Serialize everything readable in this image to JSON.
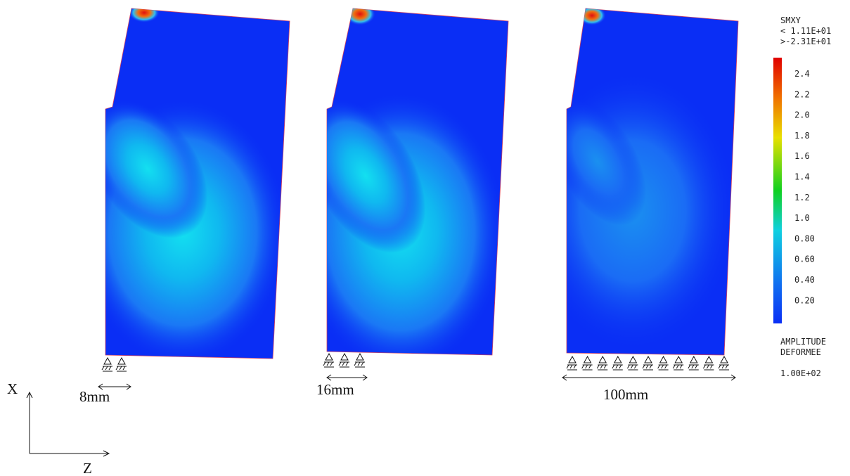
{
  "legend": {
    "title": "SMXY",
    "max": "< 1.11E+01",
    "min": ">-2.31E+01",
    "labels": [
      "2.4",
      "2.2",
      "2.0",
      "1.8",
      "1.6",
      "1.4",
      "1.2",
      "1.0",
      "0.80",
      "0.60",
      "0.40",
      "0.20"
    ],
    "amplitude_title": "AMPLITUDE",
    "amplitude_subtitle": "DEFORMEE",
    "amplitude_value": "1.00E+02"
  },
  "panels": [
    {
      "label": "8mm"
    },
    {
      "label": "16mm"
    },
    {
      "label": "100mm"
    }
  ],
  "axes": {
    "x": "X",
    "z": "Z"
  }
}
